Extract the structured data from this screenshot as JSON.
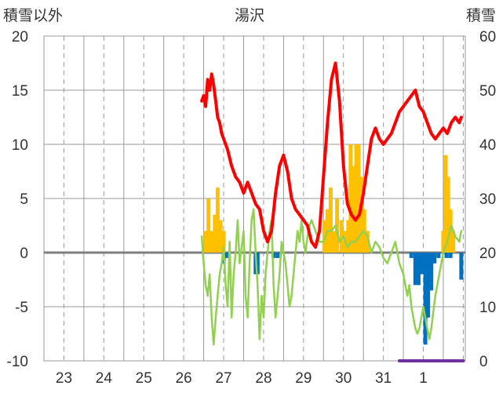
{
  "chart_data": {
    "type": "line",
    "title": "湯沢",
    "left_axis_title": "積雪以外",
    "right_axis_title": "積雪",
    "ylim_left": [
      -10,
      20
    ],
    "ylim_right": [
      0,
      60
    ],
    "yticks_left": [
      20,
      15,
      10,
      5,
      0,
      -5,
      -10
    ],
    "yticks_right": [
      60,
      50,
      40,
      30,
      20,
      10,
      0
    ],
    "x_range_days": [
      0,
      10.55
    ],
    "day_labels": [
      "23",
      "24",
      "25",
      "26",
      "27",
      "28",
      "29",
      "30",
      "31",
      "1"
    ],
    "grid": true,
    "colors": {
      "snow_depth": "#ff0000",
      "temperature": "#92d050",
      "snowfall": "#ffc000",
      "change": "#0070c0",
      "precip": "#7030a0",
      "grid": "#999999",
      "zero_line": "#7f7f7f"
    },
    "snow_depth_series": {
      "axis": "right",
      "x": [
        3.95,
        4.0,
        4.05,
        4.1,
        4.15,
        4.2,
        4.25,
        4.3,
        4.35,
        4.4,
        4.45,
        4.5,
        4.6,
        4.7,
        4.8,
        4.9,
        5.0,
        5.1,
        5.2,
        5.3,
        5.4,
        5.5,
        5.6,
        5.7,
        5.8,
        5.9,
        6.0,
        6.1,
        6.2,
        6.3,
        6.4,
        6.5,
        6.6,
        6.7,
        6.8,
        6.9,
        7.0,
        7.1,
        7.2,
        7.3,
        7.4,
        7.5,
        7.6,
        7.7,
        7.8,
        7.9,
        8.0,
        8.1,
        8.2,
        8.3,
        8.4,
        8.5,
        8.6,
        8.7,
        8.8,
        8.9,
        9.0,
        9.1,
        9.2,
        9.3,
        9.4,
        9.5,
        9.6,
        9.7,
        9.8,
        9.9,
        10.0,
        10.1,
        10.2,
        10.3,
        10.4,
        10.45
      ],
      "values": [
        48,
        49,
        47,
        52,
        50,
        53,
        51,
        48,
        45,
        44,
        42,
        41,
        39,
        36,
        34,
        33,
        31,
        33,
        31,
        29,
        28,
        24,
        22,
        24,
        31,
        36,
        38,
        35,
        30,
        28,
        27,
        26,
        25,
        22,
        21,
        24,
        34,
        44,
        52,
        55,
        48,
        36,
        29,
        27,
        26,
        27,
        31,
        36,
        41,
        43,
        41,
        40,
        41,
        42,
        44,
        46,
        47,
        48,
        49,
        50,
        47,
        46,
        44,
        42,
        41,
        42,
        43,
        42,
        44,
        45,
        44,
        45
      ]
    },
    "temperature_series": {
      "axis": "left",
      "x": [
        3.95,
        4.0,
        4.05,
        4.1,
        4.15,
        4.2,
        4.25,
        4.3,
        4.35,
        4.4,
        4.45,
        4.5,
        4.55,
        4.6,
        4.65,
        4.7,
        4.75,
        4.8,
        4.85,
        4.9,
        4.95,
        5.0,
        5.05,
        5.1,
        5.15,
        5.2,
        5.25,
        5.3,
        5.35,
        5.4,
        5.45,
        5.5,
        5.55,
        5.6,
        5.65,
        5.7,
        5.75,
        5.8,
        5.85,
        5.9,
        5.95,
        6.0,
        6.05,
        6.1,
        6.15,
        6.2,
        6.25,
        6.3,
        6.35,
        6.4,
        6.45,
        6.5,
        6.55,
        6.6,
        6.65,
        6.7,
        6.8,
        6.9,
        7.0,
        7.1,
        7.2,
        7.3,
        7.4,
        7.5,
        7.6,
        7.7,
        7.8,
        7.9,
        8.0,
        8.1,
        8.2,
        8.3,
        8.4,
        8.5,
        8.6,
        8.7,
        8.8,
        8.9,
        9.0,
        9.05,
        9.1,
        9.15,
        9.2,
        9.25,
        9.3,
        9.35,
        9.4,
        9.45,
        9.5,
        9.55,
        9.6,
        9.65,
        9.7,
        9.8,
        9.9,
        10.0,
        10.1,
        10.2,
        10.3,
        10.4,
        10.45
      ],
      "values": [
        1.5,
        -1,
        -3,
        -4,
        -2,
        -6,
        -8.5,
        -6,
        -4,
        -2,
        -1,
        0.5,
        -3,
        -5,
        1,
        -6,
        -2,
        0,
        3,
        -1,
        0.5,
        2,
        -4,
        -6,
        -1,
        3,
        4,
        0,
        -3,
        -8,
        -4,
        -6,
        -2,
        0,
        2,
        3,
        -3,
        -6,
        -4,
        -2,
        1,
        0,
        -1,
        -3,
        -5,
        -4,
        -2,
        0,
        2,
        1,
        3,
        1,
        0,
        1.5,
        2.5,
        3,
        2,
        1,
        1,
        2,
        2,
        2.5,
        1,
        1.5,
        0.5,
        1,
        1,
        1.5,
        2,
        1.5,
        0,
        1,
        0.5,
        -0.5,
        -1,
        0,
        1,
        -1,
        -2,
        -3,
        -4,
        -3,
        -5,
        -6,
        -7,
        -7.5,
        -7,
        -6,
        -5,
        -6,
        -7,
        -8,
        -7,
        -4,
        -2,
        0,
        1,
        2.5,
        1.5,
        1,
        2
      ]
    },
    "snowfall_bars": {
      "axis": "left",
      "x": [
        4.05,
        4.12,
        4.2,
        4.28,
        4.35,
        4.42,
        4.5,
        7.02,
        7.1,
        7.18,
        7.26,
        7.34,
        7.45,
        7.55,
        7.62,
        7.68,
        7.75,
        7.82,
        7.88,
        7.95,
        8.02,
        8.1,
        10.0,
        10.06,
        10.12,
        10.18,
        10.25
      ],
      "values": [
        2,
        5,
        2,
        3.5,
        6,
        3,
        2,
        3,
        4,
        6,
        2,
        5,
        3,
        2,
        3,
        10,
        8,
        10,
        10,
        7,
        4,
        2,
        2,
        9,
        7,
        4,
        2
      ]
    },
    "change_bars": {
      "axis": "left",
      "x": [
        4.5,
        4.58,
        5.3,
        5.35,
        5.75,
        5.85,
        9.2,
        9.3,
        9.38,
        9.46,
        9.55,
        9.62,
        9.7,
        9.78,
        9.88,
        10.08,
        10.18,
        10.45
      ],
      "values": [
        -1,
        -0.5,
        -2,
        -2,
        -0.5,
        -0.5,
        -0.5,
        -3,
        -3,
        -2,
        -8.5,
        -6,
        -3.5,
        -1,
        -0.5,
        -0.5,
        -0.5,
        -2.5
      ]
    },
    "precip_series": {
      "axis": "left",
      "x": [
        8.9,
        10.5
      ],
      "values": [
        -10,
        -10
      ]
    }
  }
}
